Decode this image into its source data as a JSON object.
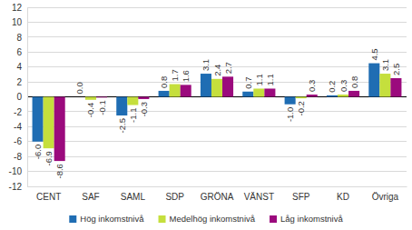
{
  "chart_data": {
    "type": "bar",
    "categories": [
      "CENT",
      "SAF",
      "SAML",
      "SDP",
      "GRÖNA",
      "VÄNST",
      "SFP",
      "KD",
      "Övriga"
    ],
    "series": [
      {
        "name": "Hög inkomstnivå",
        "color": "#1f6db3",
        "values": [
          -6.0,
          0.0,
          -2.5,
          0.8,
          3.1,
          0.7,
          -1.0,
          0.2,
          4.5
        ],
        "value_labels": [
          "-6.0",
          "0.0",
          "-2.5",
          "0.8",
          "3.1",
          "0.7",
          "-1.0",
          "0.2",
          "4.5"
        ]
      },
      {
        "name": "Medelhög inkomstnivå",
        "color": "#c5df3d",
        "values": [
          -6.9,
          -0.4,
          -1.1,
          1.7,
          2.4,
          1.1,
          -0.2,
          0.3,
          3.1
        ],
        "value_labels": [
          "-6.9",
          "-0.4",
          "-1.1",
          "1.7",
          "2.4",
          "1.1",
          "-0.2",
          "0.3",
          "3.1"
        ]
      },
      {
        "name": "Låg inkomstnivå",
        "color": "#9b0a7d",
        "values": [
          -8.6,
          -0.1,
          -0.3,
          1.6,
          2.7,
          1.1,
          0.3,
          0.8,
          2.5
        ],
        "value_labels": [
          "-8.6",
          "-0.1",
          "-0.3",
          "1.6",
          "2.7",
          "1.1",
          "0.3",
          "0.8",
          "2.5"
        ]
      }
    ],
    "ylim": [
      -12,
      12
    ],
    "yticks": [
      -12,
      -10,
      -8,
      -6,
      -4,
      -2,
      0,
      2,
      4,
      6,
      8,
      10,
      12
    ],
    "grid": true,
    "data_labels": true,
    "legend": "bottom"
  }
}
